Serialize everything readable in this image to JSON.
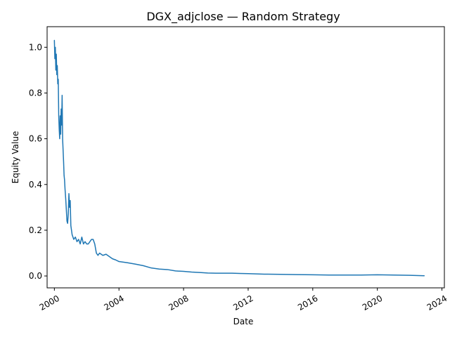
{
  "chart_data": {
    "type": "line",
    "title": "DGX_adjclose — Random Strategy",
    "xlabel": "Date",
    "ylabel": "Equity Value",
    "xlim": [
      1999.55,
      2024.15
    ],
    "ylim": [
      -0.052,
      1.09
    ],
    "x_ticks": [
      {
        "value": 2000,
        "label": "2000"
      },
      {
        "value": 2004,
        "label": "2004"
      },
      {
        "value": 2008,
        "label": "2008"
      },
      {
        "value": 2012,
        "label": "2012"
      },
      {
        "value": 2016,
        "label": "2016"
      },
      {
        "value": 2020,
        "label": "2020"
      },
      {
        "value": 2024,
        "label": "2024"
      }
    ],
    "y_ticks": [
      {
        "value": 0.0,
        "label": "0.0"
      },
      {
        "value": 0.2,
        "label": "0.2"
      },
      {
        "value": 0.4,
        "label": "0.4"
      },
      {
        "value": 0.6,
        "label": "0.6"
      },
      {
        "value": 0.8,
        "label": "0.8"
      },
      {
        "value": 1.0,
        "label": "1.0"
      }
    ],
    "series": [
      {
        "name": "Equity Value",
        "color": "#1f77b4",
        "x": [
          2000.0,
          2000.03,
          2000.06,
          2000.09,
          2000.12,
          2000.15,
          2000.18,
          2000.21,
          2000.24,
          2000.27,
          2000.3,
          2000.33,
          2000.36,
          2000.39,
          2000.42,
          2000.45,
          2000.48,
          2000.51,
          2000.54,
          2000.57,
          2000.6,
          2000.63,
          2000.66,
          2000.7,
          2000.74,
          2000.78,
          2000.82,
          2000.86,
          2000.9,
          2000.94,
          2000.98,
          2001.02,
          2001.06,
          2001.1,
          2001.15,
          2001.2,
          2001.3,
          2001.4,
          2001.5,
          2001.6,
          2001.7,
          2001.8,
          2001.9,
          2002.0,
          2002.1,
          2002.2,
          2002.3,
          2002.4,
          2002.5,
          2002.6,
          2002.65,
          2002.7,
          2002.8,
          2003.0,
          2003.2,
          2003.4,
          2003.6,
          2003.8,
          2004.0,
          2004.5,
          2005.0,
          2005.5,
          2006.0,
          2006.5,
          2007.0,
          2007.5,
          2008.0,
          2008.5,
          2009.0,
          2009.5,
          2010.0,
          2010.5,
          2011.0,
          2011.5,
          2012.0,
          2013.0,
          2014.0,
          2015.0,
          2016.0,
          2017.0,
          2018.0,
          2019.0,
          2020.0,
          2021.0,
          2022.0,
          2022.9
        ],
        "values": [
          1.03,
          0.95,
          1.0,
          0.9,
          0.97,
          0.88,
          0.92,
          0.84,
          0.86,
          0.7,
          0.64,
          0.6,
          0.7,
          0.62,
          0.73,
          0.66,
          0.79,
          0.6,
          0.55,
          0.5,
          0.44,
          0.42,
          0.38,
          0.34,
          0.29,
          0.24,
          0.23,
          0.27,
          0.36,
          0.3,
          0.33,
          0.22,
          0.2,
          0.18,
          0.17,
          0.16,
          0.17,
          0.15,
          0.16,
          0.14,
          0.17,
          0.14,
          0.15,
          0.14,
          0.14,
          0.15,
          0.16,
          0.16,
          0.14,
          0.1,
          0.095,
          0.09,
          0.1,
          0.09,
          0.095,
          0.085,
          0.075,
          0.07,
          0.063,
          0.058,
          0.052,
          0.045,
          0.035,
          0.03,
          0.028,
          0.022,
          0.02,
          0.017,
          0.015,
          0.013,
          0.012,
          0.012,
          0.012,
          0.011,
          0.01,
          0.008,
          0.007,
          0.006,
          0.005,
          0.004,
          0.004,
          0.004,
          0.005,
          0.004,
          0.003,
          0.001
        ]
      }
    ]
  }
}
